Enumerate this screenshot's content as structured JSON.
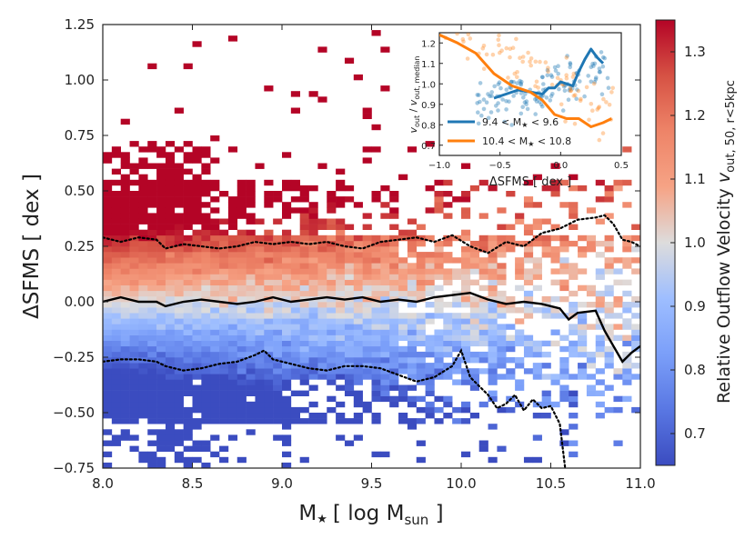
{
  "chart_data": {
    "type": "heatmap",
    "xlabel": "M★ [log M_sun]",
    "xlabel_parts": {
      "main": "M",
      "star": "★",
      "bracket_open": "[ log M",
      "sub": "sun",
      "bracket_close": " ]"
    },
    "ylabel": "ΔSFMS [ dex ]",
    "xlim": [
      8.0,
      11.0
    ],
    "ylim": [
      -0.75,
      1.25
    ],
    "xticks": [
      8.0,
      8.5,
      9.0,
      9.5,
      10.0,
      10.5,
      11.0
    ],
    "xtick_labels": [
      "8.0",
      "8.5",
      "9.0",
      "9.5",
      "10.0",
      "10.5",
      "11.0"
    ],
    "yticks": [
      -0.75,
      -0.5,
      -0.25,
      0.0,
      0.25,
      0.5,
      0.75,
      1.0,
      1.25
    ],
    "ytick_labels": [
      "−0.75",
      "−0.50",
      "−0.25",
      "0.00",
      "0.25",
      "0.50",
      "0.75",
      "1.00",
      "1.25"
    ],
    "colorbar": {
      "label": "Relative Outflow Velocity",
      "label_symbol": "v",
      "label_subscript": "out, 50, r<5kpc",
      "range": [
        0.65,
        1.35
      ],
      "ticks": [
        0.7,
        0.8,
        0.9,
        1.0,
        1.1,
        1.2,
        1.3
      ],
      "tick_labels": [
        "0.7",
        "0.8",
        "0.9",
        "1.0",
        "1.1",
        "1.2",
        "1.3"
      ],
      "colormap": "coolwarm (blue → light grey → red)",
      "low_color": "#3b4cc0",
      "mid_color": "#dddcdc",
      "high_color": "#b40426"
    },
    "grid": {
      "x_bin_width": 0.05,
      "y_bin_width": 0.025,
      "description": "2D binned median relative outflow velocity; red (>1.2) above +0.25 dex at low mass, blue (<0.85) below −0.3 dex"
    },
    "series": [
      {
        "name": "median ΔSFMS",
        "style": "solid black",
        "x": [
          8.0,
          8.1,
          8.2,
          8.3,
          8.35,
          8.45,
          8.55,
          8.65,
          8.75,
          8.85,
          8.95,
          9.05,
          9.15,
          9.25,
          9.35,
          9.45,
          9.55,
          9.65,
          9.75,
          9.85,
          9.95,
          10.05,
          10.15,
          10.25,
          10.35,
          10.45,
          10.55,
          10.6,
          10.65,
          10.75,
          10.8,
          10.85,
          10.9,
          10.95,
          11.0
        ],
        "y": [
          0.0,
          0.02,
          0.0,
          0.0,
          -0.02,
          0.0,
          0.01,
          0.0,
          -0.01,
          0.0,
          0.02,
          0.0,
          0.01,
          0.02,
          0.01,
          0.02,
          0.0,
          0.01,
          0.0,
          0.02,
          0.03,
          0.04,
          0.01,
          -0.01,
          0.0,
          -0.01,
          -0.03,
          -0.08,
          -0.05,
          -0.04,
          -0.13,
          -0.2,
          -0.27,
          -0.23,
          -0.2
        ]
      },
      {
        "name": "upper percentile",
        "style": "dotted black",
        "x": [
          8.0,
          8.1,
          8.2,
          8.3,
          8.35,
          8.45,
          8.55,
          8.65,
          8.75,
          8.85,
          8.95,
          9.05,
          9.15,
          9.25,
          9.35,
          9.45,
          9.55,
          9.65,
          9.75,
          9.85,
          9.95,
          10.05,
          10.15,
          10.25,
          10.35,
          10.45,
          10.55,
          10.65,
          10.75,
          10.8,
          10.85,
          10.9,
          10.95,
          11.0
        ],
        "y": [
          0.29,
          0.27,
          0.29,
          0.28,
          0.24,
          0.26,
          0.25,
          0.24,
          0.25,
          0.27,
          0.26,
          0.27,
          0.26,
          0.27,
          0.25,
          0.24,
          0.27,
          0.28,
          0.29,
          0.27,
          0.3,
          0.25,
          0.22,
          0.27,
          0.25,
          0.31,
          0.33,
          0.37,
          0.38,
          0.39,
          0.35,
          0.28,
          0.27,
          0.25
        ]
      },
      {
        "name": "lower percentile",
        "style": "dotted black",
        "x": [
          8.0,
          8.1,
          8.2,
          8.3,
          8.35,
          8.45,
          8.55,
          8.65,
          8.75,
          8.85,
          8.9,
          8.95,
          9.05,
          9.15,
          9.25,
          9.35,
          9.45,
          9.55,
          9.65,
          9.75,
          9.85,
          9.95,
          10.0,
          10.05,
          10.15,
          10.2,
          10.25,
          10.3,
          10.35,
          10.4,
          10.45,
          10.5,
          10.55,
          10.58
        ],
        "y": [
          -0.27,
          -0.26,
          -0.26,
          -0.27,
          -0.29,
          -0.31,
          -0.3,
          -0.28,
          -0.27,
          -0.24,
          -0.22,
          -0.26,
          -0.28,
          -0.3,
          -0.31,
          -0.29,
          -0.29,
          -0.3,
          -0.33,
          -0.36,
          -0.34,
          -0.29,
          -0.22,
          -0.34,
          -0.42,
          -0.48,
          -0.46,
          -0.42,
          -0.49,
          -0.44,
          -0.48,
          -0.47,
          -0.55,
          -0.75
        ]
      }
    ],
    "inset": {
      "type": "line+scatter",
      "xlabel": "ΔSFMS [ dex ]",
      "ylabel": "v_out / v_out,median",
      "ylabel_parts": {
        "v1": "v",
        "sub1": "out",
        "slash": " / ",
        "v2": "v",
        "sub2": "out, median"
      },
      "xlim": [
        -1.0,
        0.5
      ],
      "ylim": [
        0.65,
        1.25
      ],
      "xticks": [
        -1.0,
        -0.5,
        0.0,
        0.5
      ],
      "xtick_labels": [
        "−1.0",
        "−0.5",
        "0.0",
        "0.5"
      ],
      "yticks": [
        0.7,
        0.8,
        0.9,
        1.0,
        1.1,
        1.2
      ],
      "ytick_labels": [
        "0.7",
        "0.8",
        "0.9",
        "1.0",
        "1.1",
        "1.2"
      ],
      "series": [
        {
          "name": "9.4 < M★ < 9.6",
          "label_parts": {
            "left": "9.4 < M",
            "star": "★",
            "right": " < 9.6"
          },
          "color": "#1f77b4",
          "x": [
            -0.55,
            -0.45,
            -0.35,
            -0.25,
            -0.15,
            -0.1,
            -0.05,
            0.0,
            0.05,
            0.1,
            0.15,
            0.2,
            0.25,
            0.3,
            0.35
          ],
          "y": [
            0.93,
            0.95,
            0.97,
            0.96,
            0.95,
            0.98,
            0.98,
            1.01,
            1.0,
            0.99,
            1.06,
            1.12,
            1.17,
            1.13,
            1.1
          ]
        },
        {
          "name": "10.4 < M★ < 10.8",
          "label_parts": {
            "left": "10.4 < M",
            "star": "★",
            "right": " < 10.8"
          },
          "color": "#ff7f0e",
          "x": [
            -1.0,
            -0.85,
            -0.7,
            -0.55,
            -0.4,
            -0.25,
            -0.15,
            -0.05,
            0.05,
            0.15,
            0.25,
            0.35,
            0.42
          ],
          "y": [
            1.24,
            1.2,
            1.15,
            1.05,
            0.99,
            0.96,
            0.92,
            0.85,
            0.83,
            0.83,
            0.79,
            0.81,
            0.83
          ]
        }
      ]
    }
  }
}
